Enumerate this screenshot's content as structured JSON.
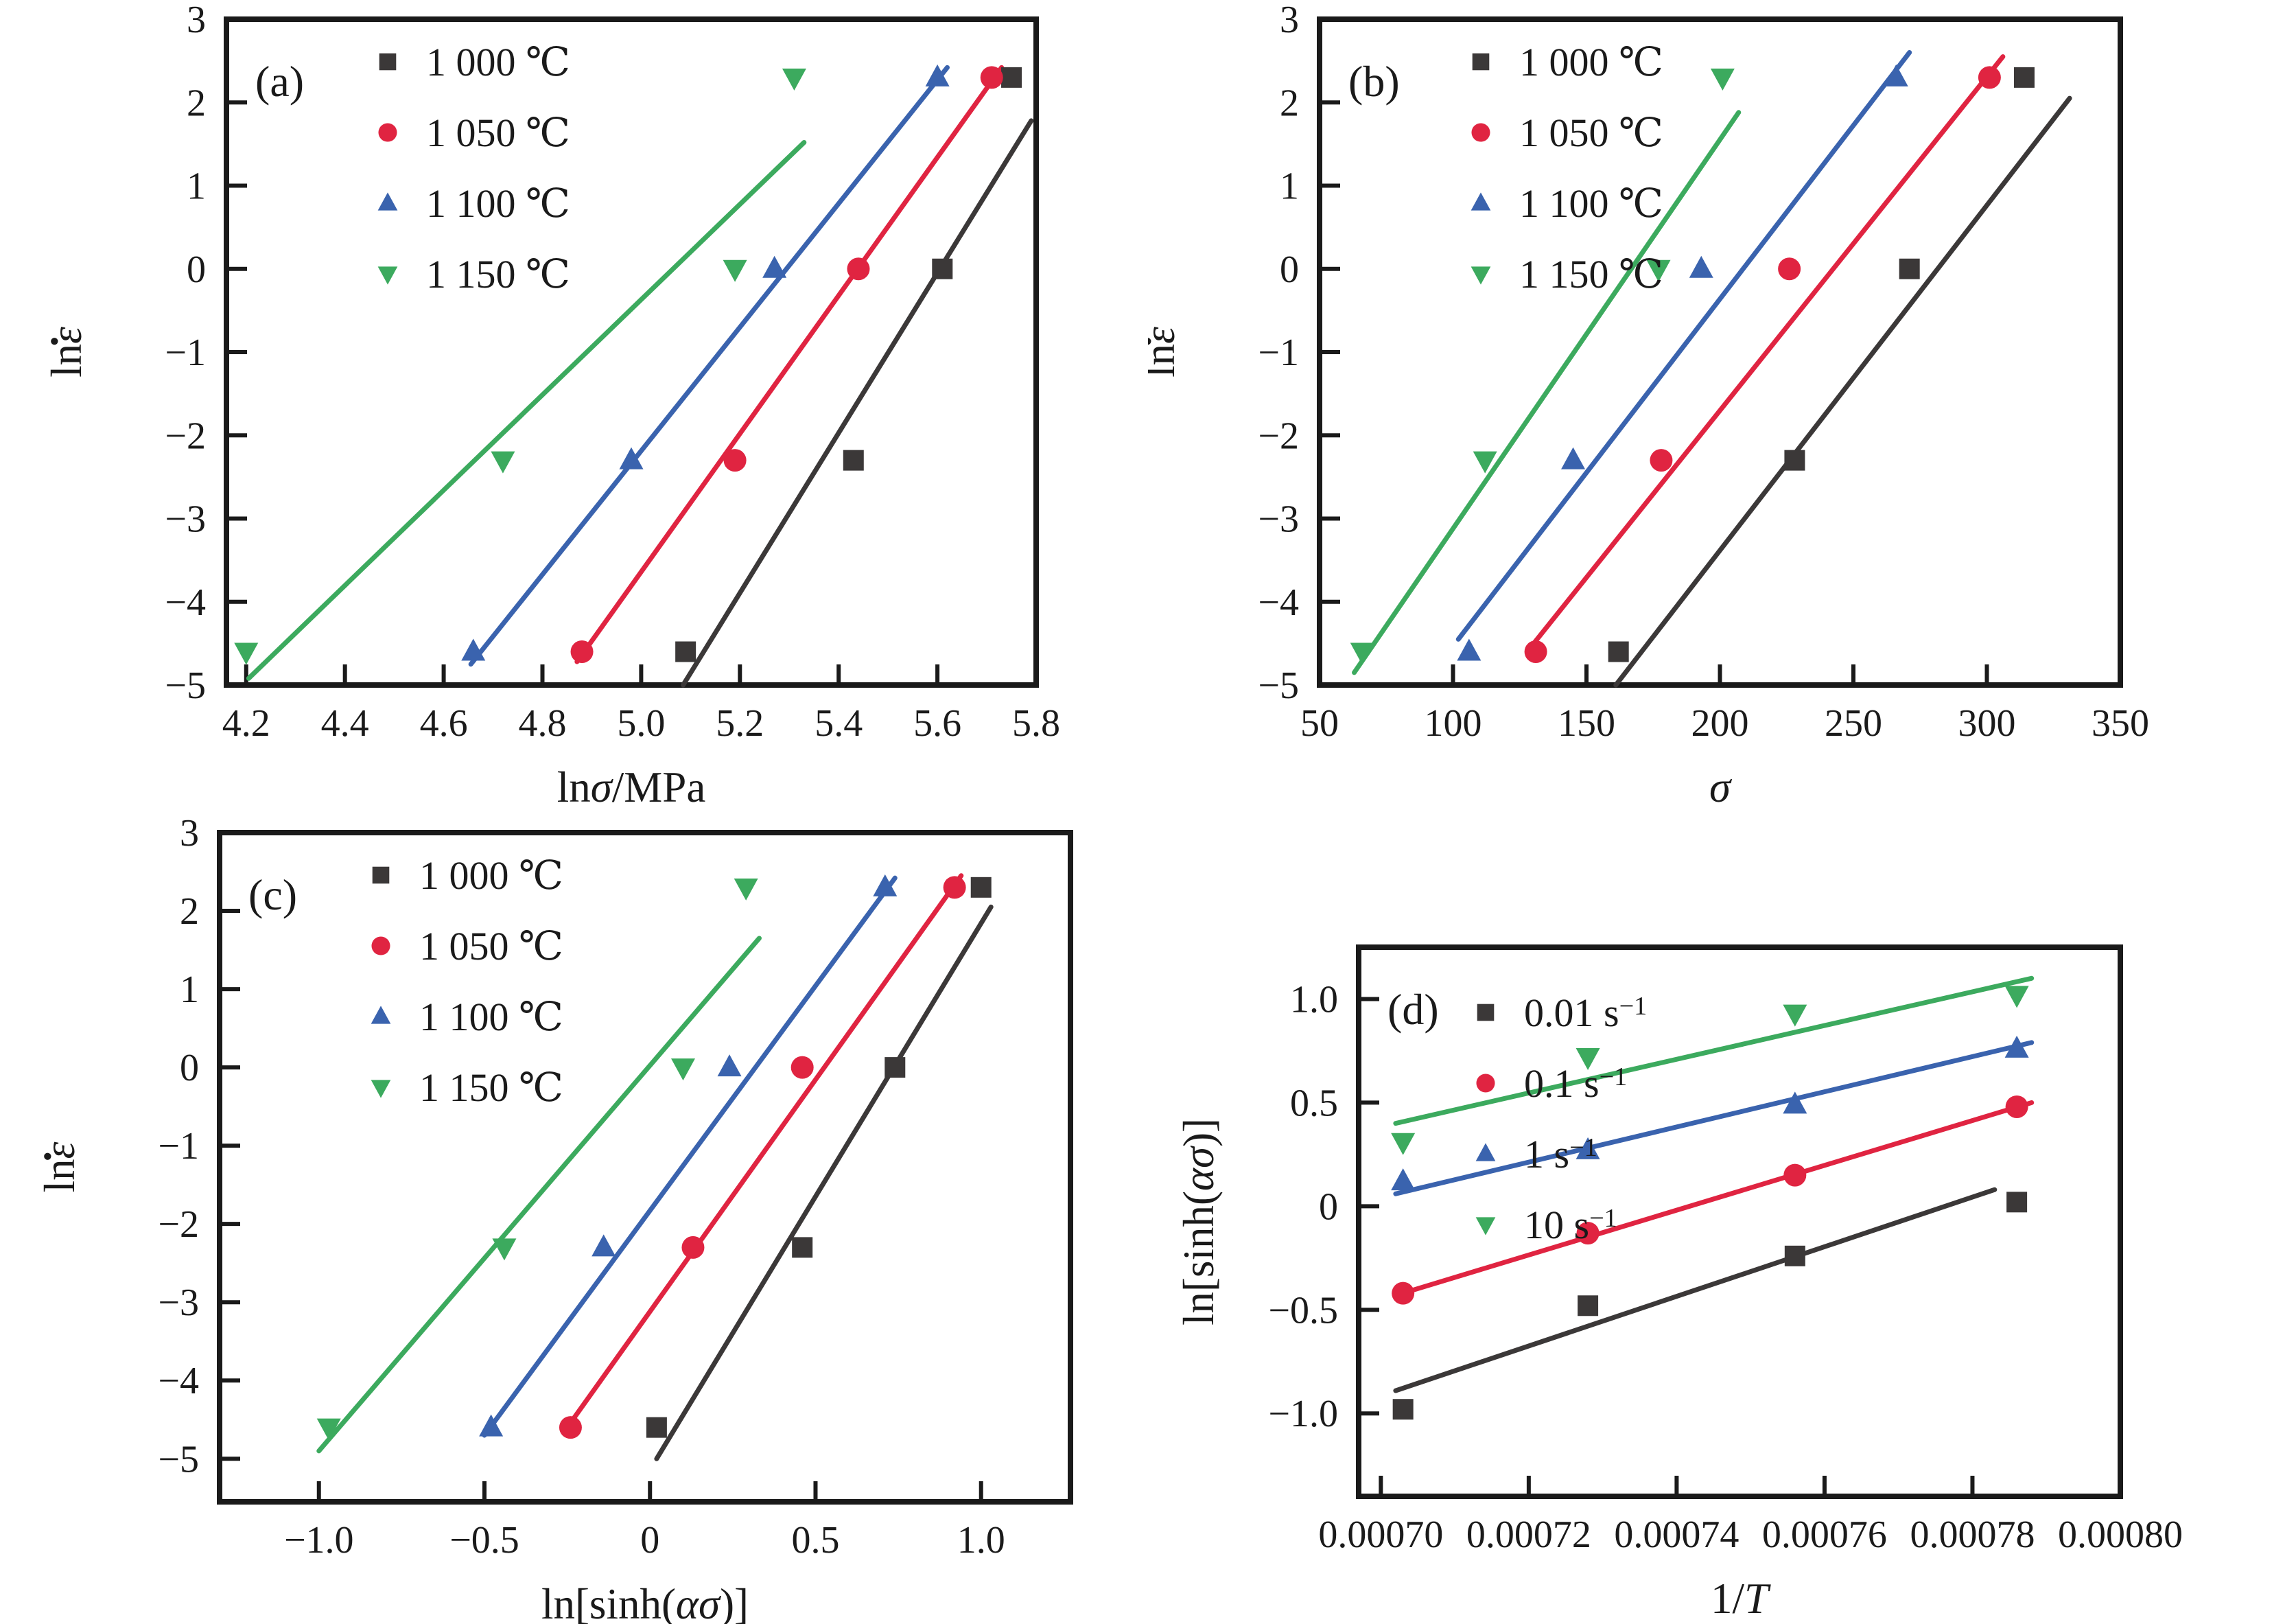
{
  "figure": {
    "background": "#ffffff"
  },
  "colors": {
    "ink": "#1a1a1a",
    "black": "#3b3838",
    "red": "#e02441",
    "blue": "#3a63ae",
    "green": "#3caa5e"
  },
  "chart_data": [
    {
      "id": "a",
      "type": "scatter",
      "panel": "(a)",
      "xlabel": [
        {
          "t": "ln"
        },
        {
          "t": "σ",
          "i": true
        },
        {
          "t": "/MPa"
        }
      ],
      "ylabel": [
        {
          "t": "ln"
        },
        {
          "t": "ε",
          "i": true,
          "dot": true
        }
      ],
      "xlim": [
        4.16,
        5.8
      ],
      "ylim": [
        -5,
        3
      ],
      "xticks": {
        "start": 4.2,
        "step": 0.2,
        "count": 9,
        "decimals": 1
      },
      "yticks": {
        "start": -5,
        "step": 1,
        "count": 9,
        "decimals": 0
      },
      "margins": {
        "l": 330,
        "r": 163,
        "t": 28,
        "b": 185
      },
      "legend": {
        "mx": 235,
        "y0": 62,
        "step": 103
      },
      "grid": false,
      "legend_position": "top-left-inside",
      "series": [
        {
          "name": [
            {
              "t": "1 000 ℃"
            }
          ],
          "color": "black",
          "marker": "square",
          "points": [
            [
              5.09,
              -4.6
            ],
            [
              5.43,
              -2.3
            ],
            [
              5.61,
              0
            ],
            [
              5.75,
              2.3
            ]
          ],
          "line": [
            5.085,
            -5.0,
            5.79,
            1.78
          ]
        },
        {
          "name": [
            {
              "t": "1 050 ℃"
            }
          ],
          "color": "red",
          "marker": "circle",
          "points": [
            [
              4.88,
              -4.6
            ],
            [
              5.19,
              -2.3
            ],
            [
              5.44,
              0
            ],
            [
              5.71,
              2.3
            ]
          ],
          "line": [
            4.87,
            -4.72,
            5.73,
            2.42
          ]
        },
        {
          "name": [
            {
              "t": "1 100 ℃"
            }
          ],
          "color": "blue",
          "marker": "triangle-up",
          "points": [
            [
              4.66,
              -4.6
            ],
            [
              4.98,
              -2.3
            ],
            [
              5.27,
              0
            ],
            [
              5.6,
              2.3
            ]
          ],
          "line": [
            4.655,
            -4.75,
            5.62,
            2.42
          ]
        },
        {
          "name": [
            {
              "t": "1 150 ℃"
            }
          ],
          "color": "green",
          "marker": "triangle-down",
          "points": [
            [
              4.2,
              -4.6
            ],
            [
              4.72,
              -2.3
            ],
            [
              5.19,
              0
            ],
            [
              5.31,
              2.3
            ]
          ],
          "line": [
            4.205,
            -4.92,
            5.33,
            1.52
          ]
        }
      ]
    },
    {
      "id": "b",
      "type": "scatter",
      "panel": "(b)",
      "xlabel": [
        {
          "t": "σ",
          "i": true
        }
      ],
      "ylabel": [
        {
          "t": "ln"
        },
        {
          "t": "ε",
          "i": true,
          "dot": true
        }
      ],
      "xlim": [
        50,
        350
      ],
      "ylim": [
        -5,
        3
      ],
      "xticks": {
        "start": 50,
        "step": 50,
        "count": 7,
        "decimals": 0
      },
      "yticks": {
        "start": -5,
        "step": 1,
        "count": 9,
        "decimals": 0
      },
      "margins": {
        "l": 250,
        "r": 256,
        "t": 28,
        "b": 185
      },
      "legend": {
        "mx": 235,
        "y0": 62,
        "step": 103
      },
      "grid": false,
      "legend_position": "top-left-inside",
      "series": [
        {
          "name": [
            {
              "t": "1 000 ℃"
            }
          ],
          "color": "black",
          "marker": "square",
          "points": [
            [
              162,
              -4.6
            ],
            [
              228,
              -2.3
            ],
            [
              271,
              0
            ],
            [
              314,
              2.3
            ]
          ],
          "line": [
            161,
            -5.0,
            331,
            2.05
          ]
        },
        {
          "name": [
            {
              "t": "1 050 ℃"
            }
          ],
          "color": "red",
          "marker": "circle",
          "points": [
            [
              131,
              -4.6
            ],
            [
              178,
              -2.3
            ],
            [
              226,
              0
            ],
            [
              301,
              2.3
            ]
          ],
          "line": [
            129,
            -4.55,
            306,
            2.55
          ]
        },
        {
          "name": [
            {
              "t": "1 100 ℃"
            }
          ],
          "color": "blue",
          "marker": "triangle-up",
          "points": [
            [
              106,
              -4.6
            ],
            [
              145,
              -2.3
            ],
            [
              193,
              0
            ],
            [
              266,
              2.3
            ]
          ],
          "line": [
            102,
            -4.45,
            271,
            2.6
          ]
        },
        {
          "name": [
            {
              "t": "1 150 ℃"
            }
          ],
          "color": "green",
          "marker": "triangle-down",
          "points": [
            [
              66,
              -4.6
            ],
            [
              112,
              -2.3
            ],
            [
              177,
              0
            ],
            [
              201,
              2.3
            ]
          ],
          "line": [
            63,
            -4.85,
            207,
            1.88
          ]
        }
      ]
    },
    {
      "id": "c",
      "type": "scatter",
      "panel": "(c)",
      "xlabel": [
        {
          "t": "ln[sinh("
        },
        {
          "t": "α",
          "i": true
        },
        {
          "t": "σ",
          "i": true
        },
        {
          "t": ")]"
        }
      ],
      "ylabel": [
        {
          "t": "ln"
        },
        {
          "t": "ε",
          "i": true,
          "dot": true
        }
      ],
      "xlim": [
        -1.3,
        1.27
      ],
      "ylim": [
        -5.55,
        3
      ],
      "xticks": {
        "start": -1.0,
        "step": 0.5,
        "count": 5,
        "decimals": 1
      },
      "yticks": {
        "start": -5,
        "step": 1,
        "count": 9,
        "decimals": 0
      },
      "margins": {
        "l": 320,
        "r": 113,
        "t": 30,
        "b": 178
      },
      "legend": {
        "mx": 235,
        "y0": 62,
        "step": 103
      },
      "grid": false,
      "legend_position": "top-left-inside",
      "series": [
        {
          "name": [
            {
              "t": "1 000 ℃"
            }
          ],
          "color": "black",
          "marker": "square",
          "points": [
            [
              0.02,
              -4.6
            ],
            [
              0.46,
              -2.3
            ],
            [
              0.74,
              0
            ],
            [
              1.0,
              2.3
            ]
          ],
          "line": [
            0.02,
            -5.0,
            1.03,
            2.05
          ]
        },
        {
          "name": [
            {
              "t": "1 050 ℃"
            }
          ],
          "color": "red",
          "marker": "circle",
          "points": [
            [
              -0.24,
              -4.6
            ],
            [
              0.13,
              -2.3
            ],
            [
              0.46,
              0
            ],
            [
              0.92,
              2.3
            ]
          ],
          "line": [
            -0.25,
            -4.6,
            0.94,
            2.45
          ]
        },
        {
          "name": [
            {
              "t": "1 100 ℃"
            }
          ],
          "color": "blue",
          "marker": "triangle-up",
          "points": [
            [
              -0.48,
              -4.6
            ],
            [
              -0.14,
              -2.3
            ],
            [
              0.24,
              0
            ],
            [
              0.71,
              2.3
            ]
          ],
          "line": [
            -0.5,
            -4.7,
            0.74,
            2.42
          ]
        },
        {
          "name": [
            {
              "t": "1 150 ℃"
            }
          ],
          "color": "green",
          "marker": "triangle-down",
          "points": [
            [
              -0.97,
              -4.6
            ],
            [
              -0.44,
              -2.3
            ],
            [
              0.1,
              0
            ],
            [
              0.29,
              2.3
            ]
          ],
          "line": [
            -1.0,
            -4.9,
            0.33,
            1.65
          ]
        }
      ]
    },
    {
      "id": "d",
      "type": "scatter",
      "panel": "(d)",
      "xlabel": [
        {
          "t": "1/"
        },
        {
          "t": "T",
          "i": true
        }
      ],
      "ylabel": [
        {
          "t": "ln[sinh("
        },
        {
          "t": "α",
          "i": true
        },
        {
          "t": "σ",
          "i": true
        },
        {
          "t": ")]"
        }
      ],
      "xlim": [
        0.000697,
        0.0008
      ],
      "ylim": [
        -1.4,
        1.25
      ],
      "xticks": {
        "start": 0.0007,
        "step": 2e-05,
        "count": 6,
        "decimals": 5
      },
      "yticks": {
        "start": -1.0,
        "step": 0.5,
        "count": 5,
        "decimals": 1
      },
      "margins": {
        "l": 307,
        "r": 256,
        "t": 197,
        "b": 186
      },
      "legend": {
        "mx": 185,
        "y0": 95,
        "step": 103
      },
      "grid": false,
      "legend_position": "top-left-inside",
      "series": [
        {
          "name": [
            {
              "t": "0.01 s"
            },
            {
              "t": "−1",
              "sup": true
            }
          ],
          "color": "black",
          "marker": "square",
          "points": [
            [
              0.000703,
              -0.98
            ],
            [
              0.000728,
              -0.48
            ],
            [
              0.000756,
              -0.24
            ],
            [
              0.000786,
              0.02
            ]
          ],
          "line": [
            0.000702,
            -0.89,
            0.000783,
            0.08
          ]
        },
        {
          "name": [
            {
              "t": "0.1 s"
            },
            {
              "t": "−1",
              "sup": true
            }
          ],
          "color": "red",
          "marker": "circle",
          "points": [
            [
              0.000703,
              -0.42
            ],
            [
              0.000728,
              -0.13
            ],
            [
              0.000756,
              0.15
            ],
            [
              0.000786,
              0.48
            ]
          ],
          "line": [
            0.000702,
            -0.43,
            0.000788,
            0.5
          ]
        },
        {
          "name": [
            {
              "t": "1 s"
            },
            {
              "t": "−1",
              "sup": true
            }
          ],
          "color": "blue",
          "marker": "triangle-up",
          "points": [
            [
              0.000703,
              0.12
            ],
            [
              0.000728,
              0.27
            ],
            [
              0.000756,
              0.49
            ],
            [
              0.000786,
              0.76
            ]
          ],
          "line": [
            0.000702,
            0.06,
            0.000788,
            0.79
          ]
        },
        {
          "name": [
            {
              "t": "10 s"
            },
            {
              "t": "−1",
              "sup": true
            }
          ],
          "color": "green",
          "marker": "triangle-down",
          "points": [
            [
              0.000703,
              0.31
            ],
            [
              0.000728,
              0.72
            ],
            [
              0.000756,
              0.93
            ],
            [
              0.000786,
              1.02
            ]
          ],
          "line": [
            0.000702,
            0.4,
            0.000788,
            1.1
          ]
        }
      ]
    }
  ]
}
